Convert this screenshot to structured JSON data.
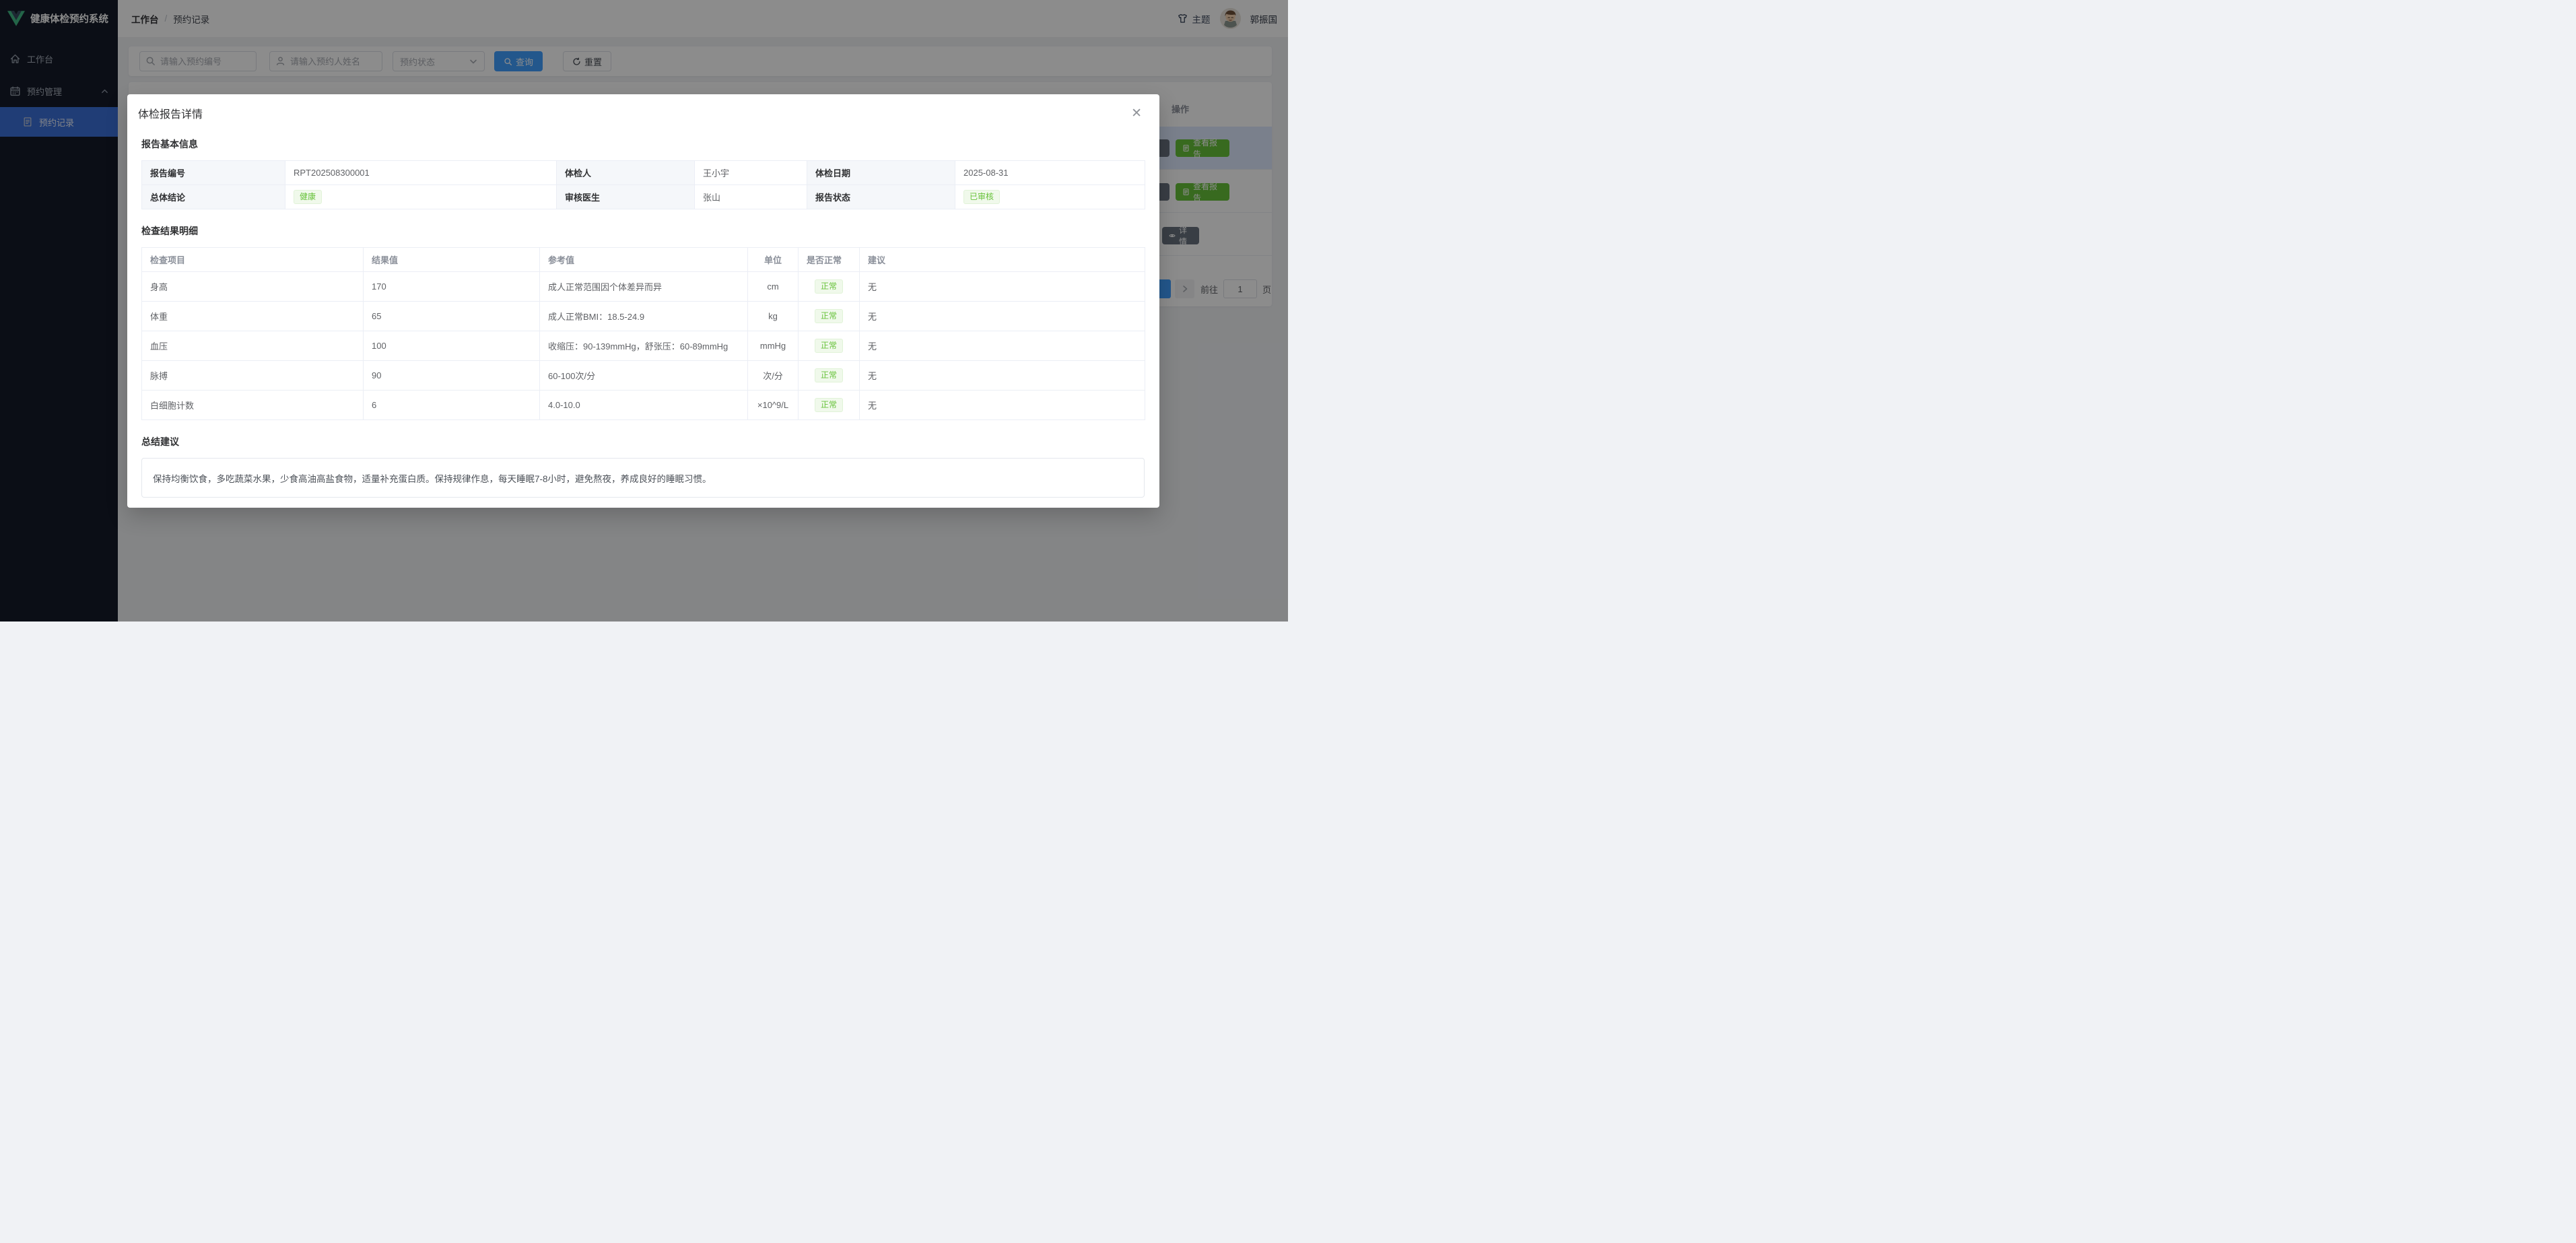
{
  "app": {
    "title": "健康体检预约系统"
  },
  "breadcrumb": {
    "first": "工作台",
    "separator": "/",
    "second": "预约记录"
  },
  "topbar_right": {
    "theme_label": "主题",
    "username": "郭振国"
  },
  "sidebar": {
    "items": [
      {
        "label": "工作台"
      },
      {
        "label": "预约管理"
      },
      {
        "label": "预约记录"
      }
    ]
  },
  "toolbar": {
    "appt_no_placeholder": "请输入预约编号",
    "name_placeholder": "请输入预约人姓名",
    "status_placeholder": "预约状态",
    "search_label": "查询",
    "reset_label": "重置"
  },
  "records_table": {
    "op_header": "操作",
    "detail_label": "详情",
    "view_report_label": "查看报告"
  },
  "pagination": {
    "goto_label": "前往",
    "page_value": "1",
    "page_suffix": "页"
  },
  "modal": {
    "title": "体检报告详情",
    "sections": {
      "basic": "报告基本信息",
      "results": "检查结果明细",
      "summary": "总结建议"
    },
    "info_rows": [
      [
        {
          "label": "报告编号",
          "value": "RPT202508300001",
          "tag": false
        },
        {
          "label": "体检人",
          "value": "王小宇",
          "tag": false
        },
        {
          "label": "体检日期",
          "value": "2025-08-31",
          "tag": false
        }
      ],
      [
        {
          "label": "总体结论",
          "value": "健康",
          "tag": true
        },
        {
          "label": "审核医生",
          "value": "张山",
          "tag": false
        },
        {
          "label": "报告状态",
          "value": "已审核",
          "tag": true
        }
      ]
    ],
    "results": {
      "headers": [
        "检查项目",
        "结果值",
        "参考值",
        "单位",
        "是否正常",
        "建议"
      ],
      "rows": [
        [
          "身高",
          "170",
          "成人正常范围因个体差异而异",
          "cm",
          "正常",
          "无"
        ],
        [
          "体重",
          "65",
          "成人正常BMI：18.5-24.9",
          "kg",
          "正常",
          "无"
        ],
        [
          "血压",
          "100",
          "收缩压：90-139mmHg，舒张压：60-89mmHg",
          "mmHg",
          "正常",
          "无"
        ],
        [
          "脉搏",
          "90",
          "60-100次/分",
          "次/分",
          "正常",
          "无"
        ],
        [
          "白细胞计数",
          "6",
          "4.0-10.0",
          "×10^9/L",
          "正常",
          "无"
        ]
      ]
    },
    "summary_text": "保持均衡饮食，多吃蔬菜水果，少食高油高盐食物，适量补充蛋白质。保持规律作息，每天睡眠7-8小时，避免熬夜，养成良好的睡眠习惯。"
  },
  "colors": {
    "primary": "#409eff",
    "success": "#67c23a",
    "success_tag_bg": "#f0f9eb",
    "sidebar_bg": "#141a28",
    "sidebar_active": "#3b6fd8",
    "page_bg": "#f0f2f5"
  }
}
